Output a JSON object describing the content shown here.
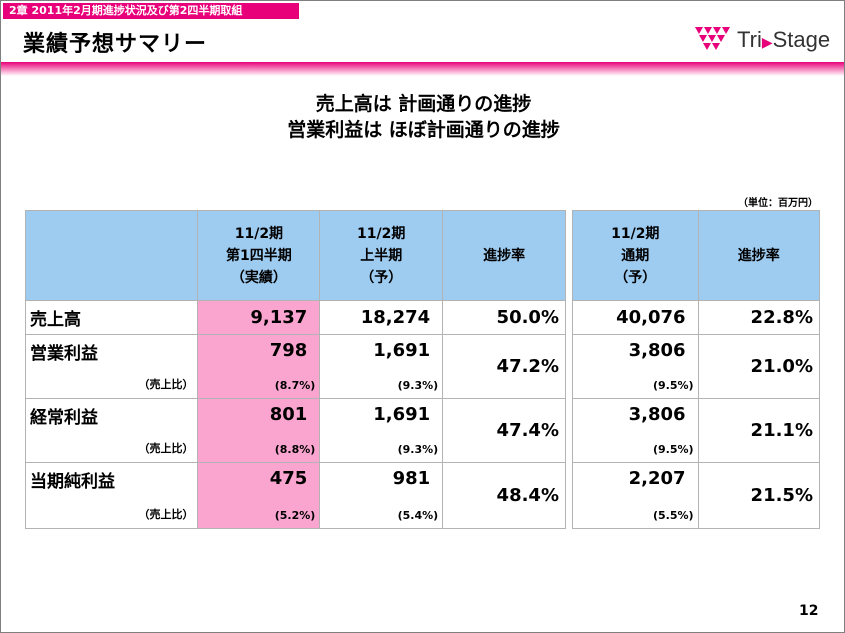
{
  "header": {
    "chapter": "2章 2011年2月期進捗状況及び第2四半期取組",
    "title": "業績予想サマリー",
    "logo_text": "Tri",
    "logo_text2": "Stage"
  },
  "headline": {
    "line1": "売上高は 計画通りの進捗",
    "line2": "営業利益は ほぼ計画通りの進捗"
  },
  "unit": "（単位：百万円）",
  "table": {
    "col1": {
      "line1": "11/2期",
      "line2": "第1四半期",
      "line3": "（実績）"
    },
    "col2": {
      "line1": "11/2期",
      "line2": "上半期",
      "line3": "（予）"
    },
    "col3": {
      "label": "進捗率"
    },
    "col4": {
      "line1": "11/2期",
      "line2": "通期",
      "line3": "（予）"
    },
    "col5": {
      "label": "進捗率"
    },
    "rows": [
      {
        "label": "売上高",
        "sub": "",
        "q1": "9,137",
        "q1_ratio": "",
        "h1": "18,274",
        "h1_ratio": "",
        "h1_progress": "50.0%",
        "fy": "40,076",
        "fy_ratio": "",
        "fy_progress": "22.8%"
      },
      {
        "label": "営業利益",
        "sub": "（売上比）",
        "q1": "798",
        "q1_ratio": "(8.7%)",
        "h1": "1,691",
        "h1_ratio": "(9.3%)",
        "h1_progress": "47.2%",
        "fy": "3,806",
        "fy_ratio": "(9.5%)",
        "fy_progress": "21.0%"
      },
      {
        "label": "経常利益",
        "sub": "（売上比）",
        "q1": "801",
        "q1_ratio": "(8.8%)",
        "h1": "1,691",
        "h1_ratio": "(9.3%)",
        "h1_progress": "47.4%",
        "fy": "3,806",
        "fy_ratio": "(9.5%)",
        "fy_progress": "21.1%"
      },
      {
        "label": "当期純利益",
        "sub": "（売上比）",
        "q1": "475",
        "q1_ratio": "(5.2%)",
        "h1": "981",
        "h1_ratio": "(5.4%)",
        "h1_progress": "48.4%",
        "fy": "2,207",
        "fy_ratio": "(5.5%)",
        "fy_progress": "21.5%"
      }
    ]
  },
  "page_number": "12",
  "colors": {
    "accent": "#e8007a",
    "header_blue": "#9ecbf0",
    "highlight_pink": "#f9a5cf"
  }
}
